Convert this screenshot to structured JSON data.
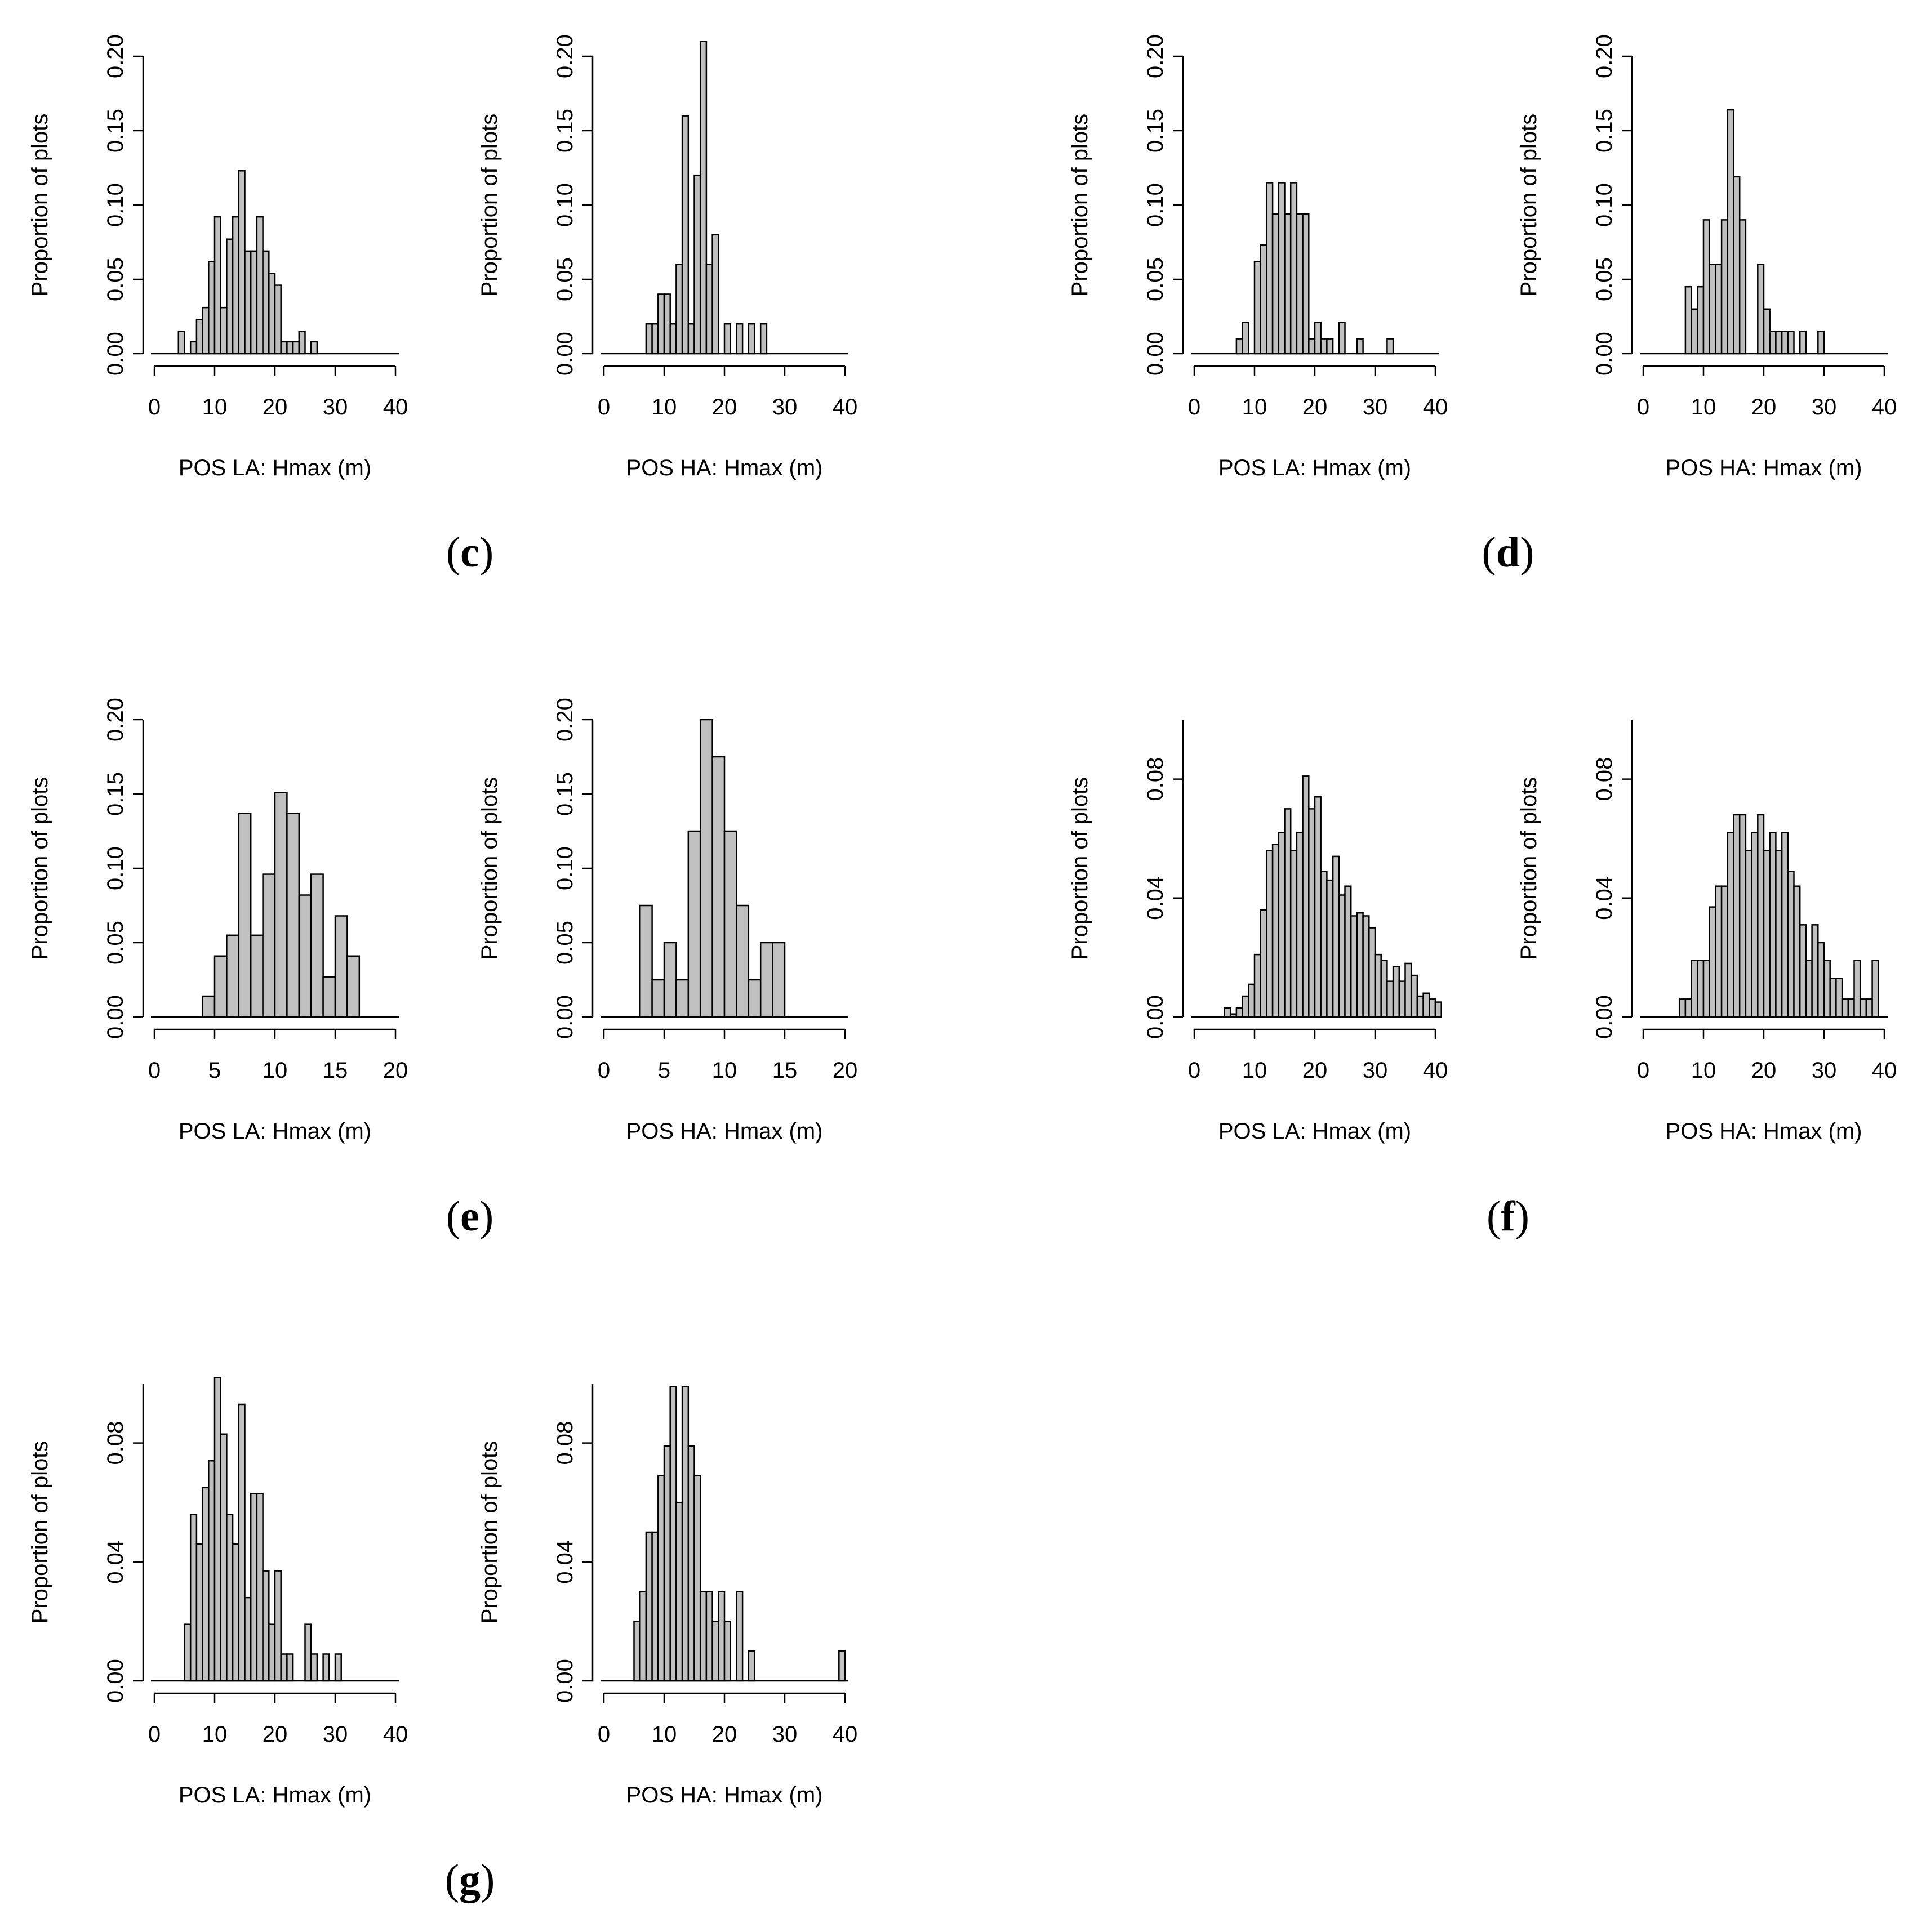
{
  "panels": [
    {
      "id": "c",
      "label_text": "c"
    },
    {
      "id": "d",
      "label_text": "d"
    },
    {
      "id": "e",
      "label_text": "e"
    },
    {
      "id": "f",
      "label_text": "f"
    },
    {
      "id": "g",
      "label_text": "g"
    }
  ],
  "colors": {
    "bar_fill": "#c0c0c0",
    "bar_stroke": "#000000",
    "axis": "#000000"
  },
  "chart_data": [
    {
      "type": "bar",
      "panel": "c",
      "title": "",
      "xlabel": "POS LA: Hmax  (m)",
      "ylabel": "Proportion of plots",
      "xlim": [
        0,
        40
      ],
      "ylim": [
        0,
        0.2
      ],
      "xticks": [
        0,
        10,
        20,
        30,
        40
      ],
      "yticks": [
        "0.00",
        "0.05",
        "0.10",
        "0.15",
        "0.20"
      ],
      "bin_start": 4,
      "bin_width": 1,
      "values": [
        0.015,
        0,
        0.008,
        0.023,
        0.031,
        0.062,
        0.092,
        0.031,
        0.077,
        0.092,
        0.123,
        0.069,
        0.069,
        0.092,
        0.069,
        0.054,
        0.046,
        0.008,
        0.008,
        0.008,
        0.015,
        0,
        0.008
      ]
    },
    {
      "type": "bar",
      "panel": "c",
      "title": "",
      "xlabel": "POS HA: Hmax (m)",
      "ylabel": "Proportion of plots",
      "xlim": [
        0,
        40
      ],
      "ylim": [
        0,
        0.2
      ],
      "xticks": [
        0,
        10,
        20,
        30,
        40
      ],
      "yticks": [
        "0.00",
        "0.05",
        "0.10",
        "0.15",
        "0.20"
      ],
      "bin_start": 7,
      "bin_width": 1,
      "values": [
        0.02,
        0.02,
        0.04,
        0.04,
        0.02,
        0.06,
        0.16,
        0.02,
        0.12,
        0.21,
        0.06,
        0.08,
        0,
        0.02,
        0,
        0.02,
        0,
        0.02,
        0,
        0.02
      ]
    },
    {
      "type": "bar",
      "panel": "d",
      "title": "",
      "xlabel": "POS LA: Hmax (m)",
      "ylabel": "Proportion of plots",
      "xlim": [
        0,
        40
      ],
      "ylim": [
        0,
        0.2
      ],
      "xticks": [
        0,
        10,
        20,
        30,
        40
      ],
      "yticks": [
        "0.00",
        "0.05",
        "0.10",
        "0.15",
        "0.20"
      ],
      "bin_start": 7,
      "bin_width": 1,
      "values": [
        0.01,
        0.021,
        0,
        0.062,
        0.073,
        0.115,
        0.094,
        0.115,
        0.094,
        0.115,
        0.094,
        0.094,
        0.01,
        0.021,
        0.01,
        0.01,
        0,
        0.021,
        0,
        0,
        0.01,
        0,
        0,
        0,
        0,
        0.01
      ]
    },
    {
      "type": "bar",
      "panel": "d",
      "title": "",
      "xlabel": "POS HA: Hmax (m)",
      "ylabel": "Proportion of plots",
      "xlim": [
        0,
        40
      ],
      "ylim": [
        0,
        0.2
      ],
      "xticks": [
        0,
        10,
        20,
        30,
        40
      ],
      "yticks": [
        "0.00",
        "0.05",
        "0.10",
        "0.15",
        "0.20"
      ],
      "bin_start": 7,
      "bin_width": 1,
      "values": [
        0.045,
        0.03,
        0.045,
        0.09,
        0.06,
        0.06,
        0.09,
        0.164,
        0.119,
        0.09,
        0,
        0,
        0.06,
        0.03,
        0.015,
        0.015,
        0.015,
        0.015,
        0,
        0.015,
        0,
        0,
        0.015
      ]
    },
    {
      "type": "bar",
      "panel": "e",
      "title": "",
      "xlabel": "POS LA: Hmax (m)",
      "ylabel": "Proportion of plots",
      "xlim": [
        0,
        20
      ],
      "ylim": [
        0,
        0.2
      ],
      "xticks": [
        0,
        5,
        10,
        15,
        20
      ],
      "yticks": [
        "0.00",
        "0.05",
        "0.10",
        "0.15",
        "0.20"
      ],
      "bin_start": 4,
      "bin_width": 1,
      "values": [
        0.014,
        0.041,
        0.055,
        0.137,
        0.055,
        0.096,
        0.151,
        0.137,
        0.082,
        0.096,
        0.027,
        0.068,
        0.041
      ]
    },
    {
      "type": "bar",
      "panel": "e",
      "title": "",
      "xlabel": "POS HA: Hmax (m)",
      "ylabel": "Proportion of plots",
      "xlim": [
        0,
        20
      ],
      "ylim": [
        0,
        0.2
      ],
      "xticks": [
        0,
        5,
        10,
        15,
        20
      ],
      "yticks": [
        "0.00",
        "0.05",
        "0.10",
        "0.15",
        "0.20"
      ],
      "bin_start": 3,
      "bin_width": 1,
      "values": [
        0.075,
        0.025,
        0.05,
        0.025,
        0.125,
        0.2,
        0.175,
        0.125,
        0.075,
        0.025,
        0.05,
        0.05
      ]
    },
    {
      "type": "bar",
      "panel": "f",
      "title": "",
      "xlabel": "POS LA: Hmax (m)",
      "ylabel": "Proportion of plots",
      "xlim": [
        0,
        40
      ],
      "ylim": [
        0,
        0.1
      ],
      "xticks": [
        0,
        10,
        20,
        30,
        40
      ],
      "yticks": [
        "0.00",
        "0.04",
        "0.08"
      ],
      "bin_start": 5,
      "bin_width": 1,
      "values": [
        0.003,
        0.001,
        0.003,
        0.007,
        0.011,
        0.021,
        0.036,
        0.056,
        0.058,
        0.062,
        0.07,
        0.056,
        0.062,
        0.081,
        0.07,
        0.074,
        0.049,
        0.046,
        0.054,
        0.041,
        0.044,
        0.034,
        0.035,
        0.034,
        0.03,
        0.021,
        0.019,
        0.012,
        0.017,
        0.012,
        0.018,
        0.014,
        0.007,
        0.008,
        0.006,
        0.005
      ]
    },
    {
      "type": "bar",
      "panel": "f",
      "title": "",
      "xlabel": "POS HA: Hmax (m)",
      "ylabel": "Proportion of plots",
      "xlim": [
        0,
        40
      ],
      "ylim": [
        0,
        0.1
      ],
      "xticks": [
        0,
        10,
        20,
        30,
        40
      ],
      "yticks": [
        "0.00",
        "0.04",
        "0.08"
      ],
      "bin_start": 6,
      "bin_width": 1,
      "values": [
        0.006,
        0.006,
        0.019,
        0.019,
        0.019,
        0.037,
        0.044,
        0.044,
        0.062,
        0.068,
        0.068,
        0.056,
        0.062,
        0.068,
        0.056,
        0.062,
        0.056,
        0.062,
        0.049,
        0.044,
        0.031,
        0.019,
        0.031,
        0.025,
        0.019,
        0.013,
        0.013,
        0.006,
        0.006,
        0.019,
        0.006,
        0.006,
        0.019
      ]
    },
    {
      "type": "bar",
      "panel": "g",
      "title": "",
      "xlabel": "POS LA: Hmax (m)",
      "ylabel": "Proportion of plots",
      "xlim": [
        0,
        40
      ],
      "ylim": [
        0,
        0.1
      ],
      "xticks": [
        0,
        10,
        20,
        30,
        40
      ],
      "yticks": [
        "0.00",
        "0.04",
        "0.08"
      ],
      "bin_start": 5,
      "bin_width": 1,
      "values": [
        0.019,
        0.056,
        0.046,
        0.065,
        0.074,
        0.102,
        0.083,
        0.056,
        0.046,
        0.093,
        0.028,
        0.063,
        0.063,
        0.037,
        0.019,
        0.037,
        0.009,
        0.009,
        0,
        0,
        0.019,
        0.009,
        0,
        0.009,
        0,
        0.009
      ]
    },
    {
      "type": "bar",
      "panel": "g",
      "title": "",
      "xlabel": "POS HA: Hmax (m)",
      "ylabel": "Proportion of plots",
      "xlim": [
        0,
        40
      ],
      "ylim": [
        0,
        0.1
      ],
      "xticks": [
        0,
        10,
        20,
        30,
        40
      ],
      "yticks": [
        "0.00",
        "0.04",
        "0.08"
      ],
      "bin_start": 5,
      "bin_width": 1,
      "values": [
        0.02,
        0.03,
        0.05,
        0.05,
        0.069,
        0.079,
        0.099,
        0.06,
        0.099,
        0.079,
        0.069,
        0.03,
        0.03,
        0.02,
        0.03,
        0.02,
        0,
        0.03,
        0,
        0.01,
        0,
        0,
        0,
        0,
        0,
        0,
        0,
        0,
        0,
        0,
        0,
        0,
        0,
        0,
        0.01
      ]
    }
  ]
}
